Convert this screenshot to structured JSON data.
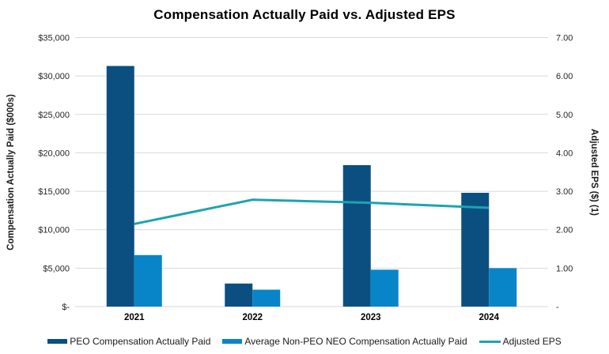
{
  "title": "Compensation Actually Paid vs. Adjusted EPS",
  "chart_data": {
    "type": "bar",
    "subtype": "combo-bar-line-dual-axis",
    "categories": [
      "2021",
      "2022",
      "2023",
      "2024"
    ],
    "series": [
      {
        "name": "PEO Compensation Actually Paid",
        "type": "bar",
        "axis": "left",
        "color": "#0B4F81",
        "values": [
          31300,
          3000,
          18400,
          14800
        ]
      },
      {
        "name": "Average Non-PEO NEO Compensation Actually Paid",
        "type": "bar",
        "axis": "left",
        "color": "#0885C8",
        "values": [
          6700,
          2200,
          4800,
          5000
        ]
      },
      {
        "name": "Adjusted EPS",
        "type": "line",
        "axis": "right",
        "color": "#1CA4B0",
        "values": [
          2.15,
          2.78,
          2.7,
          2.57
        ]
      }
    ],
    "left_axis": {
      "title": "Compensation Actually Paid ($000s)",
      "ticks": [
        "$35,000",
        "$30,000",
        "$25,000",
        "$20,000",
        "$15,000",
        "$10,000",
        "$5,000",
        "$-"
      ],
      "min": 0,
      "max": 35000
    },
    "right_axis": {
      "title": "Adjusted EPS ($) (1)",
      "ticks": [
        "7.00",
        "6.00",
        "5.00",
        "4.00",
        "3.00",
        "2.00",
        "1.00",
        "-"
      ],
      "min": 0,
      "max": 7
    },
    "gridlines": true,
    "gridline_color": "#D9D9D9",
    "legend_position": "bottom"
  }
}
